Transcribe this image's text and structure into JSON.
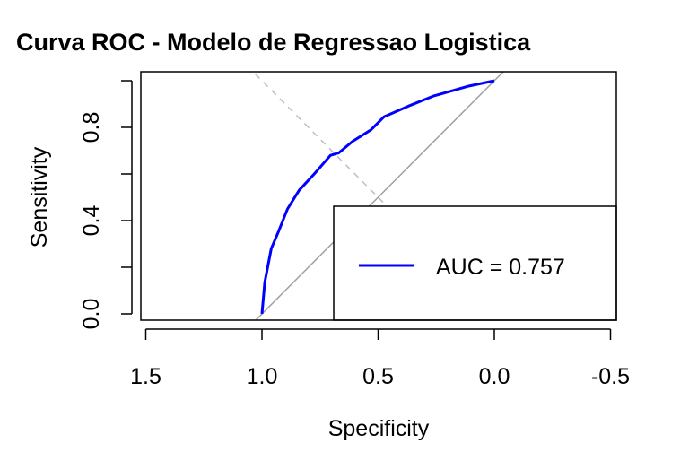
{
  "chart_data": {
    "type": "line",
    "title": "Curva ROC - Modelo de Regressao Logistica",
    "xlabel": "Specificity",
    "ylabel": "Sensitivity",
    "x_reversed": true,
    "xlim": [
      1.52,
      -0.52
    ],
    "ylim": [
      -0.03,
      1.04
    ],
    "x_ticks": [
      1.5,
      1.0,
      0.5,
      0.0,
      -0.5
    ],
    "x_tick_labels": [
      "1.5",
      "1.0",
      "0.5",
      "0.0",
      "-0.5"
    ],
    "y_ticks": [
      0.0,
      0.2,
      0.4,
      0.6,
      0.8,
      1.0
    ],
    "y_tick_labels": [
      "0.0",
      "",
      "0.4",
      "",
      "0.8",
      ""
    ],
    "grid": false,
    "series": [
      {
        "color": "#0000ff",
        "x": [
          1.0,
          0.988,
          0.96,
          0.93,
          0.89,
          0.84,
          0.775,
          0.705,
          0.67,
          0.61,
          0.53,
          0.475,
          0.36,
          0.26,
          0.11,
          0.0
        ],
        "y": [
          0.0,
          0.135,
          0.28,
          0.35,
          0.45,
          0.53,
          0.6,
          0.68,
          0.69,
          0.74,
          0.79,
          0.845,
          0.895,
          0.935,
          0.977,
          1.0
        ]
      }
    ],
    "reference_lines": [
      {
        "kind": "chance diagonal",
        "color": "#a0a0a0",
        "style": "solid"
      },
      {
        "kind": "sensitivity = specificity",
        "color": "#bebebe",
        "style": "dashed"
      }
    ],
    "legend": {
      "position": "bottom-right",
      "entries": [
        {
          "label": "AUC = 0.757",
          "color": "#0000ff"
        }
      ]
    }
  }
}
